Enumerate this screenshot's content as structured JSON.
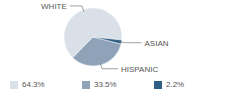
{
  "chart_data": {
    "type": "pie",
    "categories": [
      "WHITE",
      "HISPANIC",
      "ASIAN"
    ],
    "values": [
      64.3,
      33.5,
      2.2
    ],
    "value_labels": [
      "64.3%",
      "33.5%",
      "2.2%"
    ],
    "colors": [
      "#d9e0e8",
      "#8fa3b8",
      "#2f5f86"
    ],
    "legend": "bottom"
  }
}
